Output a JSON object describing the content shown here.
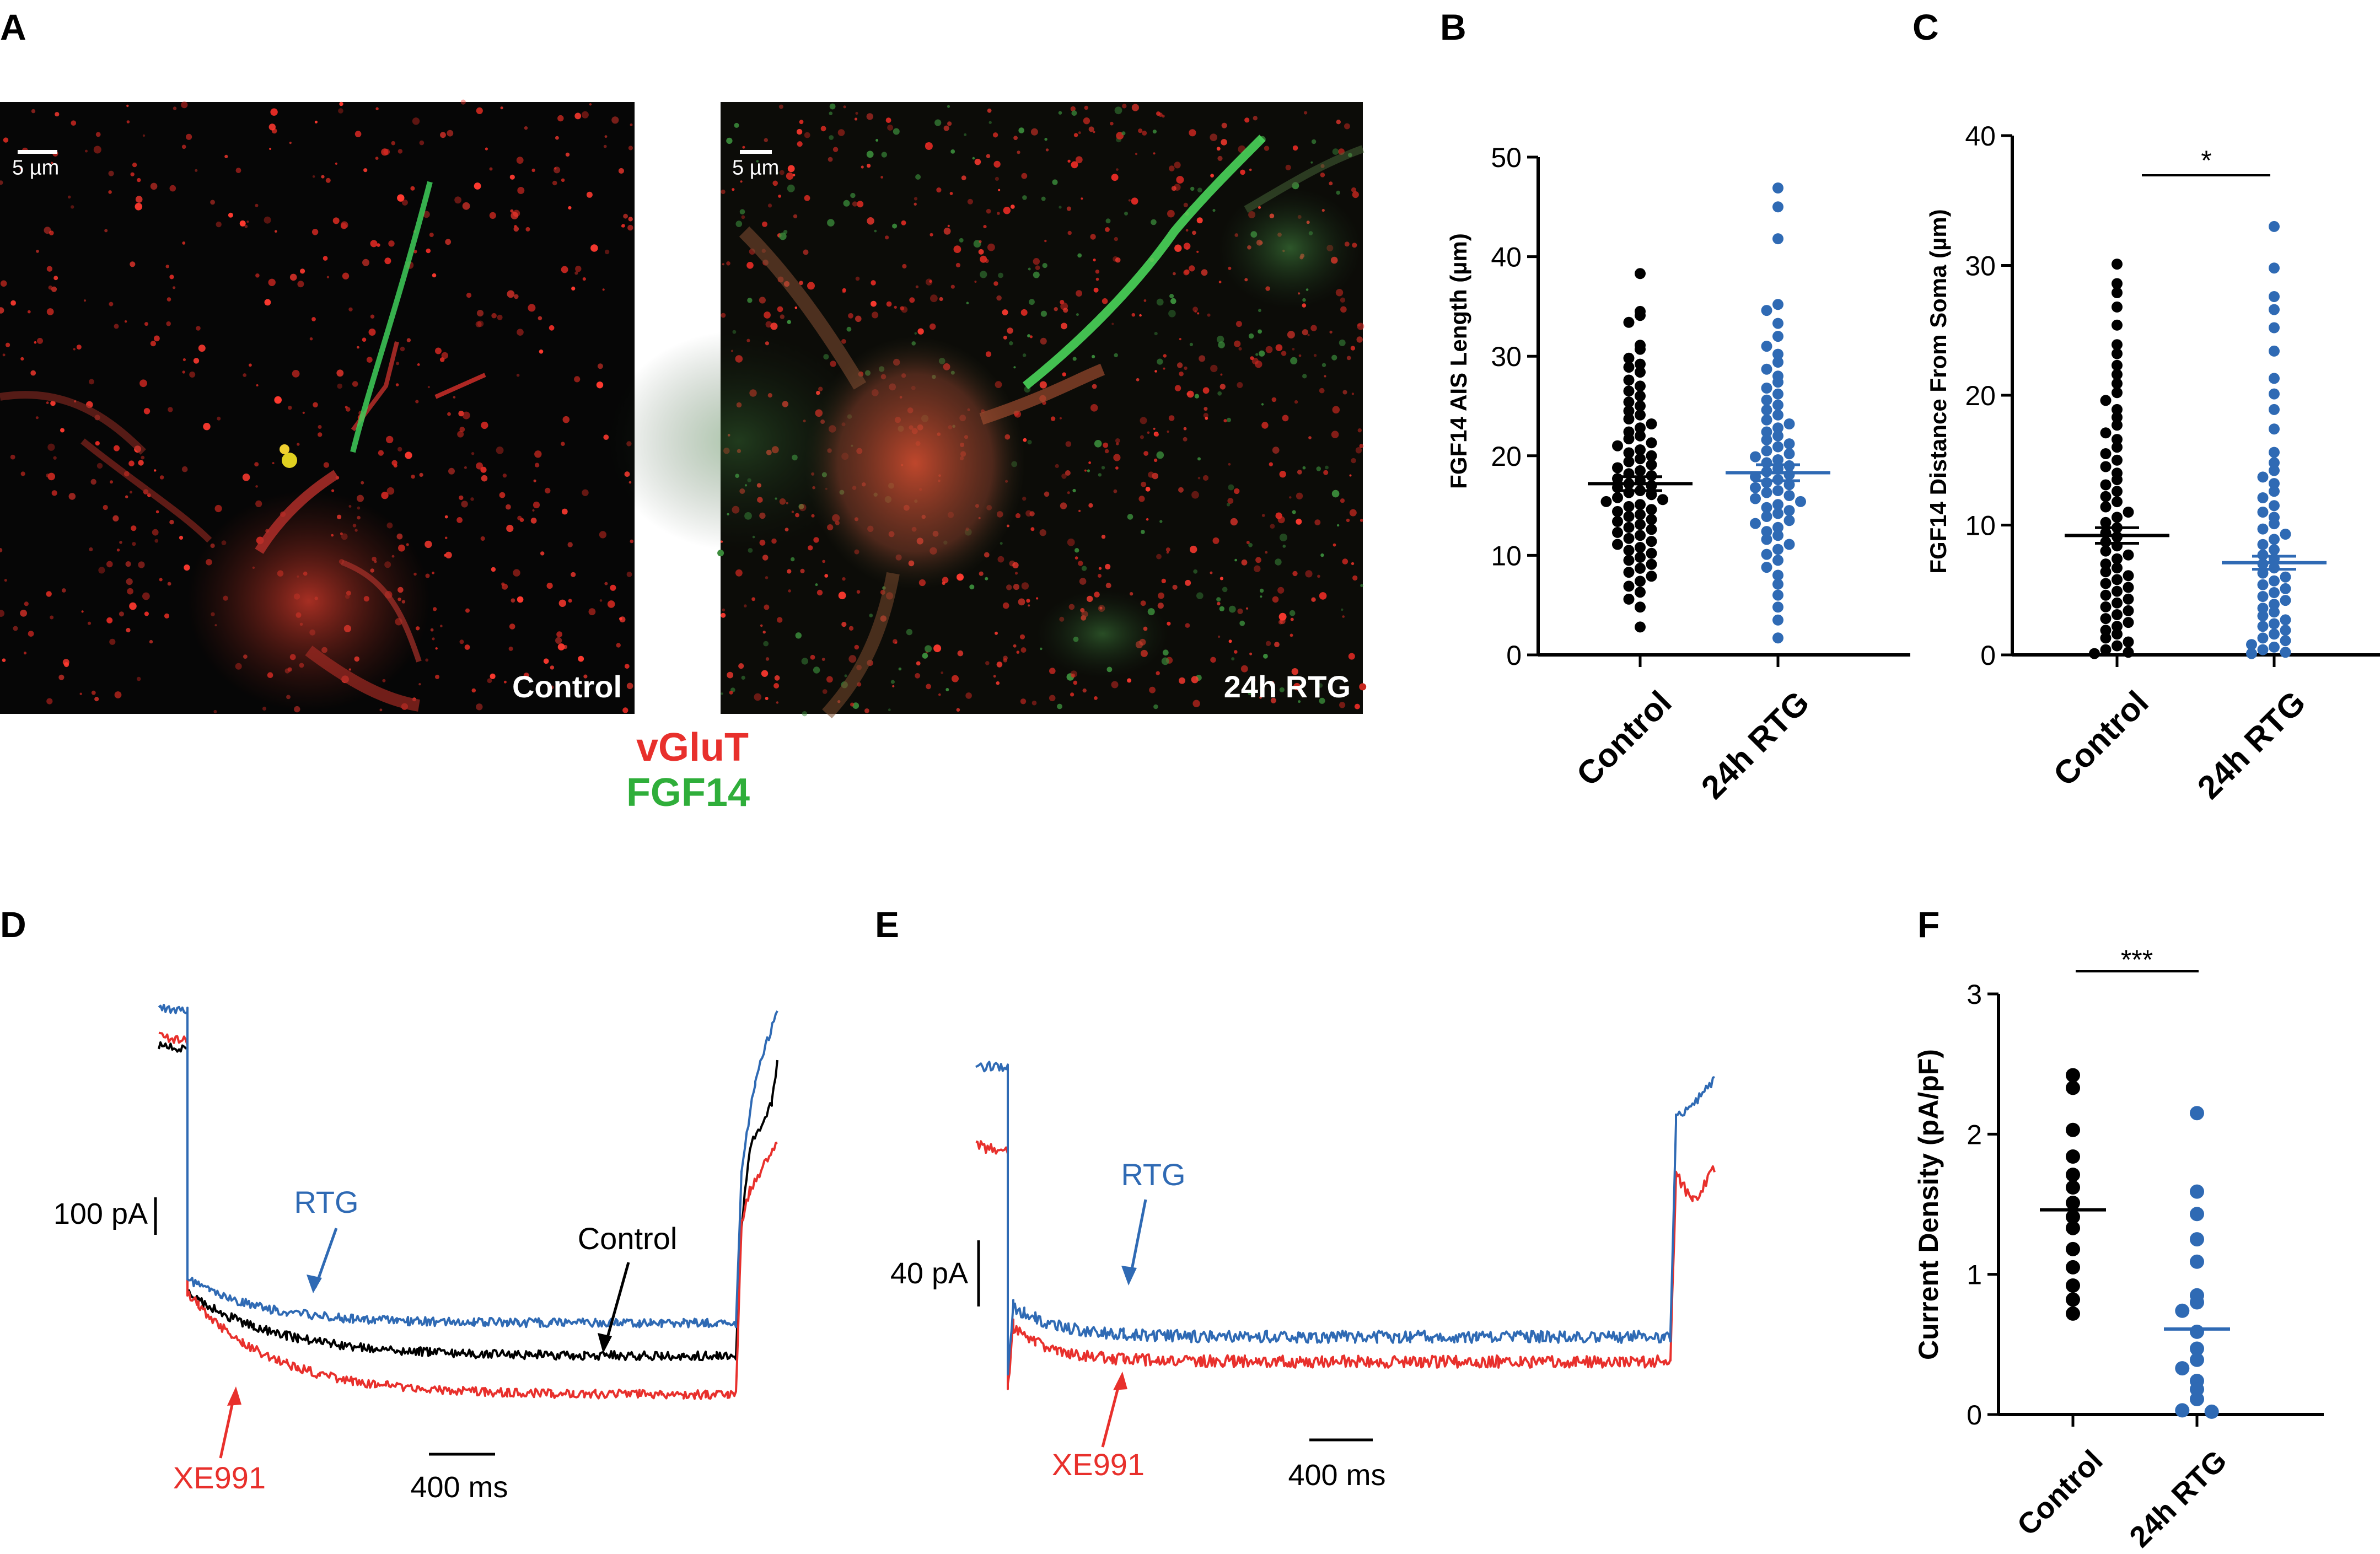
{
  "panels": {
    "a": {
      "letter": "A",
      "scale_bar": "5 µm",
      "image_left_label": "Control",
      "image_right_label": "24h RTG",
      "stain_1": "vGluT",
      "stain_2": "FGF14",
      "stain_1_color": "#e8302c",
      "stain_2_color": "#2fae3a"
    },
    "b": {
      "letter": "B"
    },
    "c": {
      "letter": "C",
      "significance": "*"
    },
    "d": {
      "letter": "D",
      "scale_current": "100 pA",
      "scale_time": "400 ms",
      "labels": {
        "rtg": "RTG",
        "control": "Control",
        "xe991": "XE991"
      }
    },
    "e": {
      "letter": "E",
      "scale_current": "40 pA",
      "scale_time": "400 ms",
      "labels": {
        "rtg": "RTG",
        "xe991": "XE991"
      }
    },
    "f": {
      "letter": "F",
      "significance": "***"
    }
  },
  "colors": {
    "control": "#000000",
    "rtg": "#2f6ab4",
    "xe991": "#e8302c"
  },
  "chart_data": [
    {
      "panel": "B",
      "type": "scatter",
      "ylabel": "FGF14 AIS Length (µm)",
      "ylim": [
        0,
        50
      ],
      "yticks": [
        0,
        10,
        20,
        30,
        40,
        50
      ],
      "categories": [
        "Control",
        "24h RTG"
      ],
      "summary": {
        "mean": [
          17.2,
          18.3
        ],
        "sem": [
          0.7,
          0.8
        ]
      },
      "series": [
        {
          "name": "Control",
          "color": "#000000",
          "values": [
            38.3,
            34.5,
            34.1,
            33.4,
            31.1,
            30.7,
            29.8,
            29.2,
            28.9,
            28.4,
            27.6,
            27.0,
            26.5,
            26.0,
            25.4,
            25.0,
            24.5,
            24.1,
            23.7,
            23.2,
            22.8,
            22.4,
            22.0,
            21.7,
            21.3,
            21.0,
            20.6,
            20.3,
            20.0,
            19.7,
            19.4,
            19.1,
            18.8,
            18.5,
            18.2,
            18.0,
            17.7,
            17.5,
            17.2,
            17.0,
            16.8,
            16.5,
            16.3,
            16.1,
            15.8,
            15.6,
            15.4,
            15.1,
            14.9,
            14.6,
            14.4,
            14.1,
            13.9,
            13.6,
            13.4,
            13.1,
            12.8,
            12.6,
            12.3,
            12.0,
            11.7,
            11.4,
            11.1,
            10.8,
            10.5,
            10.2,
            9.8,
            9.5,
            9.1,
            8.7,
            8.3,
            7.9,
            7.4,
            6.9,
            6.3,
            5.6,
            4.8,
            2.8
          ]
        },
        {
          "name": "24h RTG",
          "color": "#2f6ab4",
          "values": [
            46.9,
            45.0,
            41.8,
            35.2,
            34.6,
            33.3,
            32.0,
            31.0,
            30.2,
            29.4,
            28.7,
            28.0,
            27.4,
            26.8,
            26.2,
            25.6,
            25.1,
            24.6,
            24.1,
            23.6,
            23.2,
            22.8,
            22.4,
            22.0,
            21.6,
            21.2,
            20.9,
            20.5,
            20.2,
            19.9,
            19.6,
            19.3,
            19.0,
            18.7,
            18.4,
            18.1,
            17.9,
            17.6,
            17.3,
            17.1,
            16.8,
            16.5,
            16.3,
            16.0,
            15.7,
            15.4,
            15.1,
            14.8,
            14.5,
            14.2,
            13.9,
            13.5,
            13.2,
            12.8,
            12.4,
            12.0,
            11.6,
            11.1,
            10.6,
            10.1,
            9.5,
            8.8,
            8.0,
            7.1,
            6.0,
            4.8,
            3.5,
            1.7
          ]
        }
      ]
    },
    {
      "panel": "C",
      "type": "scatter",
      "ylabel": "FGF14 Distance From Soma (µm)",
      "ylim": [
        0,
        40
      ],
      "yticks": [
        0,
        10,
        20,
        30,
        40
      ],
      "categories": [
        "Control",
        "24h RTG"
      ],
      "summary": {
        "mean": [
          9.2,
          7.1
        ],
        "sem": [
          0.6,
          0.5
        ]
      },
      "series": [
        {
          "name": "Control",
          "color": "#000000",
          "values": [
            30.1,
            28.6,
            27.9,
            26.8,
            25.4,
            23.9,
            23.2,
            22.3,
            21.6,
            20.9,
            20.2,
            19.6,
            18.9,
            18.3,
            17.7,
            17.1,
            16.6,
            16.0,
            15.5,
            15.0,
            14.5,
            14.0,
            13.5,
            13.1,
            12.6,
            12.2,
            11.8,
            11.4,
            11.0,
            10.6,
            10.2,
            9.8,
            9.4,
            9.1,
            8.7,
            8.4,
            8.0,
            7.7,
            7.4,
            7.0,
            6.7,
            6.4,
            6.1,
            5.8,
            5.5,
            5.2,
            4.9,
            4.6,
            4.3,
            4.0,
            3.7,
            3.4,
            3.1,
            2.8,
            2.5,
            2.2,
            1.9,
            1.6,
            1.3,
            1.0,
            0.7,
            0.4,
            0.2,
            0.1
          ]
        },
        {
          "name": "24h RTG",
          "color": "#2f6ab4",
          "values": [
            33.0,
            29.8,
            27.6,
            26.6,
            25.2,
            23.4,
            21.3,
            20.1,
            18.9,
            17.4,
            15.6,
            14.8,
            14.2,
            13.7,
            13.2,
            12.6,
            12.1,
            11.5,
            11.0,
            10.6,
            10.1,
            9.7,
            9.3,
            8.9,
            8.5,
            8.1,
            7.7,
            7.4,
            7.0,
            6.7,
            6.3,
            6.0,
            5.7,
            5.4,
            5.1,
            4.8,
            4.5,
            4.2,
            3.9,
            3.6,
            3.3,
            3.0,
            2.7,
            2.4,
            2.2,
            1.9,
            1.6,
            1.3,
            1.1,
            0.8,
            0.6,
            0.4,
            0.2,
            0.1
          ]
        }
      ]
    },
    {
      "panel": "F",
      "type": "scatter",
      "ylabel": "Current Density (pA/pF)",
      "ylim": [
        0,
        3
      ],
      "yticks": [
        0,
        1,
        2,
        3
      ],
      "categories": [
        "Control",
        "24h RTG"
      ],
      "summary": {
        "mean": [
          1.46,
          0.61
        ]
      },
      "series": [
        {
          "name": "Control",
          "color": "#000000",
          "values": [
            2.42,
            2.33,
            2.03,
            1.84,
            1.71,
            1.62,
            1.51,
            1.41,
            1.33,
            1.18,
            1.05,
            0.92,
            0.82,
            0.72
          ]
        },
        {
          "name": "24h RTG",
          "color": "#2f6ab4",
          "values": [
            2.15,
            1.59,
            1.43,
            1.25,
            1.09,
            0.85,
            0.8,
            0.74,
            0.59,
            0.47,
            0.39,
            0.33,
            0.24,
            0.18,
            0.11,
            0.03,
            0.02
          ]
        }
      ]
    }
  ]
}
